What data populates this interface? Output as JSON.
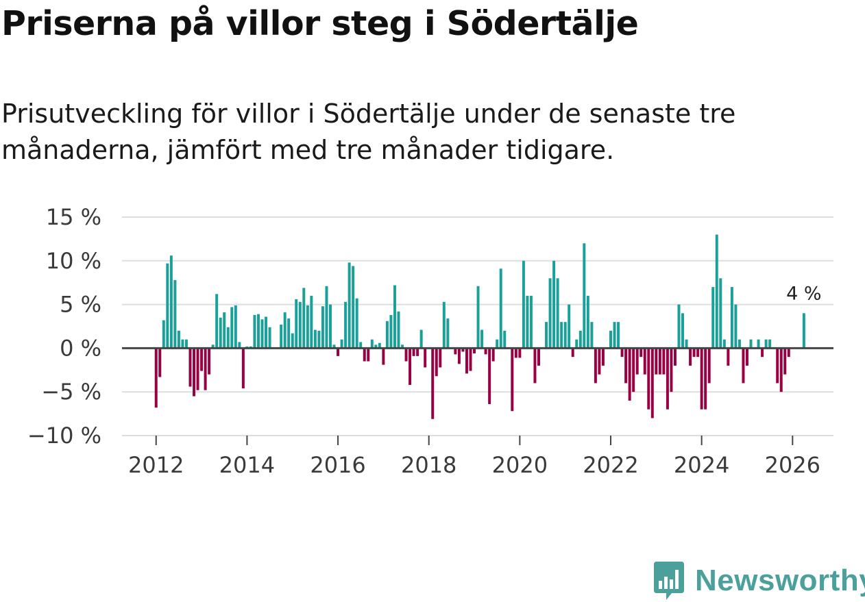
{
  "header": {
    "title": "Priserna på villor steg i Södertälje",
    "subtitle": "Prisutveckling för villor i Södertälje under de senaste tre månaderna, jämfört med tre månader tidigare."
  },
  "brand": {
    "name": "Newsworthy"
  },
  "colors": {
    "positive": "#19a098",
    "negative": "#990044",
    "grid": "#dddddd",
    "baseline": "#444444"
  },
  "chart_data": {
    "type": "bar",
    "title": "Priserna på villor steg i Södertälje",
    "xlabel": "",
    "ylabel": "",
    "ylim": [
      -10,
      15
    ],
    "yticks": [
      15,
      10,
      5,
      0,
      -5,
      -10
    ],
    "ytick_labels": [
      "15 %",
      "10 %",
      "5 %",
      "0 %",
      "−5 %",
      "−10 %"
    ],
    "xlim": [
      2011.25,
      2026.9
    ],
    "xtick_values": [
      2012,
      2014,
      2016,
      2018,
      2020,
      2022,
      2024,
      2026
    ],
    "xtick_labels": [
      "2012",
      "2014",
      "2016",
      "2018",
      "2020",
      "2022",
      "2024",
      "2026"
    ],
    "end_label": "4 %",
    "start": "2012-01",
    "frequency": "monthly",
    "values": [
      -6.8,
      -3.3,
      3.2,
      9.7,
      10.6,
      7.8,
      2.0,
      1.0,
      1.0,
      -4.4,
      -5.5,
      -4.8,
      -2.6,
      -4.8,
      -3.0,
      0.4,
      6.2,
      3.5,
      4.1,
      2.4,
      4.7,
      4.9,
      0.7,
      -4.6,
      0.2,
      0.2,
      3.8,
      3.9,
      3.3,
      3.6,
      2.4,
      0.1,
      0.1,
      2.7,
      4.1,
      3.4,
      1.7,
      5.6,
      5.3,
      6.9,
      4.9,
      6.0,
      2.1,
      2.0,
      4.8,
      7.1,
      5.0,
      0.4,
      -0.9,
      1.0,
      5.3,
      9.8,
      9.4,
      5.7,
      0.7,
      -1.5,
      -1.5,
      1.0,
      0.4,
      0.6,
      -1.9,
      3.1,
      3.8,
      7.2,
      4.2,
      0.4,
      -1.5,
      -4.2,
      -0.9,
      -0.9,
      2.1,
      -2.2,
      0.1,
      -8.1,
      -3.2,
      -2.2,
      5.3,
      3.4,
      0.1,
      -0.7,
      -1.8,
      -0.4,
      -2.9,
      -2.6,
      -0.6,
      7.1,
      2.1,
      -0.7,
      -6.4,
      -1.5,
      1.0,
      9.1,
      2.0,
      0.1,
      -7.2,
      -1.1,
      -1.1,
      10.0,
      6.0,
      6.0,
      -4.0,
      -2.0,
      0.1,
      3.0,
      8.0,
      10.0,
      8.0,
      3.0,
      3.0,
      5.0,
      -1.0,
      1.0,
      2.0,
      12.0,
      6.0,
      3.0,
      -4.0,
      -3.0,
      -2.0,
      0.1,
      2.0,
      3.0,
      3.0,
      -1.0,
      -4.0,
      -6.0,
      -5.0,
      -3.0,
      -1.0,
      -3.0,
      -7.0,
      -8.0,
      -3.0,
      -3.0,
      -3.0,
      -7.0,
      -5.0,
      -2.0,
      5.0,
      4.0,
      1.0,
      -2.0,
      -1.0,
      -1.0,
      -7.0,
      -7.0,
      -4.0,
      7.0,
      13.0,
      8.0,
      1.0,
      -2.0,
      7.0,
      5.0,
      1.0,
      -4.0,
      -2.0,
      1.0,
      0.1,
      1.0,
      -1.0,
      1.0,
      1.0,
      0.1,
      -4.0,
      -5.0,
      -3.0,
      -1.0,
      0.1,
      0.1,
      0.1,
      4.0
    ]
  }
}
